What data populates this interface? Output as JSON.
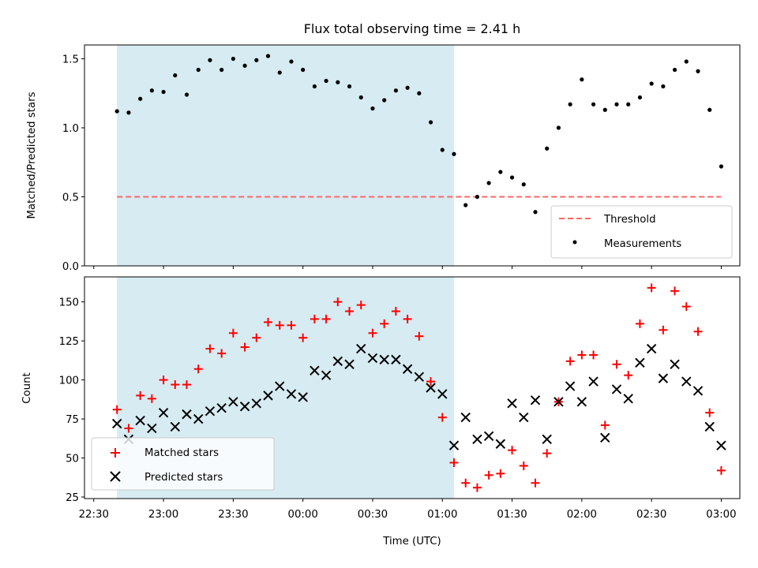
{
  "title": "Flux total observing time = 2.41 h",
  "chart_data": [
    {
      "type": "scatter",
      "ylabel": "Matched/Predicted stars",
      "xlabel": "",
      "xlim": [
        "22:26",
        "03:08"
      ],
      "ylim": [
        0,
        1.6
      ],
      "yticks": [
        0.0,
        0.5,
        1.0,
        1.5
      ],
      "ytick_labels": [
        "0.0",
        "0.5",
        "1.0",
        "1.5"
      ],
      "shaded_span": [
        "22:40",
        "01:05"
      ],
      "shade_color": "#add8e6",
      "legend": {
        "placement": "lower right",
        "entries": [
          "Threshold",
          "Measurements"
        ]
      },
      "threshold": {
        "name": "Threshold",
        "value": 0.5,
        "x": [
          "22:40",
          "03:00"
        ],
        "color": "#ff6666",
        "style": "dashed"
      },
      "series": [
        {
          "name": "Measurements",
          "marker": "dot",
          "color": "#000000",
          "x": [
            "22:40",
            "22:45",
            "22:50",
            "22:55",
            "23:00",
            "23:05",
            "23:10",
            "23:15",
            "23:20",
            "23:25",
            "23:30",
            "23:35",
            "23:40",
            "23:45",
            "23:50",
            "23:55",
            "00:00",
            "00:05",
            "00:10",
            "00:15",
            "00:20",
            "00:25",
            "00:30",
            "00:35",
            "00:40",
            "00:45",
            "00:50",
            "00:55",
            "01:00",
            "01:05",
            "01:10",
            "01:15",
            "01:20",
            "01:25",
            "01:30",
            "01:35",
            "01:40",
            "01:45",
            "01:50",
            "01:55",
            "02:00",
            "02:05",
            "02:10",
            "02:15",
            "02:20",
            "02:25",
            "02:30",
            "02:35",
            "02:40",
            "02:45",
            "02:50",
            "02:55",
            "03:00"
          ],
          "y": [
            1.12,
            1.11,
            1.21,
            1.27,
            1.26,
            1.38,
            1.24,
            1.42,
            1.49,
            1.42,
            1.5,
            1.45,
            1.49,
            1.52,
            1.4,
            1.48,
            1.42,
            1.3,
            1.34,
            1.33,
            1.3,
            1.22,
            1.14,
            1.2,
            1.27,
            1.29,
            1.25,
            1.04,
            0.84,
            0.81,
            0.44,
            0.5,
            0.6,
            0.68,
            0.64,
            0.59,
            0.39,
            0.85,
            1.0,
            1.17,
            1.35,
            1.17,
            1.13,
            1.17,
            1.17,
            1.22,
            1.32,
            1.3,
            1.42,
            1.48,
            1.41,
            1.13,
            0.72
          ]
        }
      ]
    },
    {
      "type": "scatter",
      "xlabel": "Time (UTC)",
      "ylabel": "Count",
      "xlim": [
        "22:26",
        "03:08"
      ],
      "ylim": [
        24,
        166
      ],
      "yticks": [
        25,
        50,
        75,
        100,
        125,
        150
      ],
      "ytick_labels": [
        "25",
        "50",
        "75",
        "100",
        "125",
        "150"
      ],
      "xticks": [
        "22:30",
        "23:00",
        "23:30",
        "00:00",
        "00:30",
        "01:00",
        "01:30",
        "02:00",
        "02:30",
        "03:00"
      ],
      "shaded_span": [
        "22:40",
        "01:05"
      ],
      "shade_color": "#add8e6",
      "legend": {
        "placement": "lower left",
        "entries": [
          "Matched stars",
          "Predicted stars"
        ]
      },
      "series": [
        {
          "name": "Matched stars",
          "marker": "plus",
          "color": "#ff0000",
          "x": [
            "22:40",
            "22:45",
            "22:50",
            "22:55",
            "23:00",
            "23:05",
            "23:10",
            "23:15",
            "23:20",
            "23:25",
            "23:30",
            "23:35",
            "23:40",
            "23:45",
            "23:50",
            "23:55",
            "00:00",
            "00:05",
            "00:10",
            "00:15",
            "00:20",
            "00:25",
            "00:30",
            "00:35",
            "00:40",
            "00:45",
            "00:50",
            "00:55",
            "01:00",
            "01:05",
            "01:10",
            "01:15",
            "01:20",
            "01:25",
            "01:30",
            "01:35",
            "01:40",
            "01:45",
            "01:50",
            "01:55",
            "02:00",
            "02:05",
            "02:10",
            "02:15",
            "02:20",
            "02:25",
            "02:30",
            "02:35",
            "02:40",
            "02:45",
            "02:50",
            "02:55",
            "03:00"
          ],
          "y": [
            81,
            69,
            90,
            88,
            100,
            97,
            97,
            107,
            120,
            117,
            130,
            121,
            127,
            137,
            135,
            135,
            127,
            139,
            139,
            150,
            144,
            148,
            130,
            136,
            144,
            139,
            128,
            99,
            76,
            47,
            34,
            31,
            39,
            40,
            55,
            45,
            34,
            53,
            86,
            112,
            116,
            116,
            71,
            110,
            103,
            136,
            159,
            132,
            157,
            147,
            131,
            79,
            42
          ]
        },
        {
          "name": "Predicted stars",
          "marker": "x",
          "color": "#000000",
          "x": [
            "22:40",
            "22:45",
            "22:50",
            "22:55",
            "23:00",
            "23:05",
            "23:10",
            "23:15",
            "23:20",
            "23:25",
            "23:30",
            "23:35",
            "23:40",
            "23:45",
            "23:50",
            "23:55",
            "00:00",
            "00:05",
            "00:10",
            "00:15",
            "00:20",
            "00:25",
            "00:30",
            "00:35",
            "00:40",
            "00:45",
            "00:50",
            "00:55",
            "01:00",
            "01:05",
            "01:10",
            "01:15",
            "01:20",
            "01:25",
            "01:30",
            "01:35",
            "01:40",
            "01:45",
            "01:50",
            "01:55",
            "02:00",
            "02:05",
            "02:10",
            "02:15",
            "02:20",
            "02:25",
            "02:30",
            "02:35",
            "02:40",
            "02:45",
            "02:50",
            "02:55",
            "03:00"
          ],
          "y": [
            72,
            62,
            74,
            69,
            79,
            70,
            78,
            75,
            80,
            82,
            86,
            83,
            85,
            90,
            96,
            91,
            89,
            106,
            103,
            112,
            110,
            120,
            114,
            113,
            113,
            107,
            102,
            95,
            91,
            58,
            76,
            62,
            64,
            59,
            85,
            76,
            87,
            62,
            86,
            96,
            86,
            99,
            63,
            94,
            88,
            111,
            120,
            101,
            110,
            99,
            93,
            70,
            58
          ]
        }
      ]
    }
  ]
}
